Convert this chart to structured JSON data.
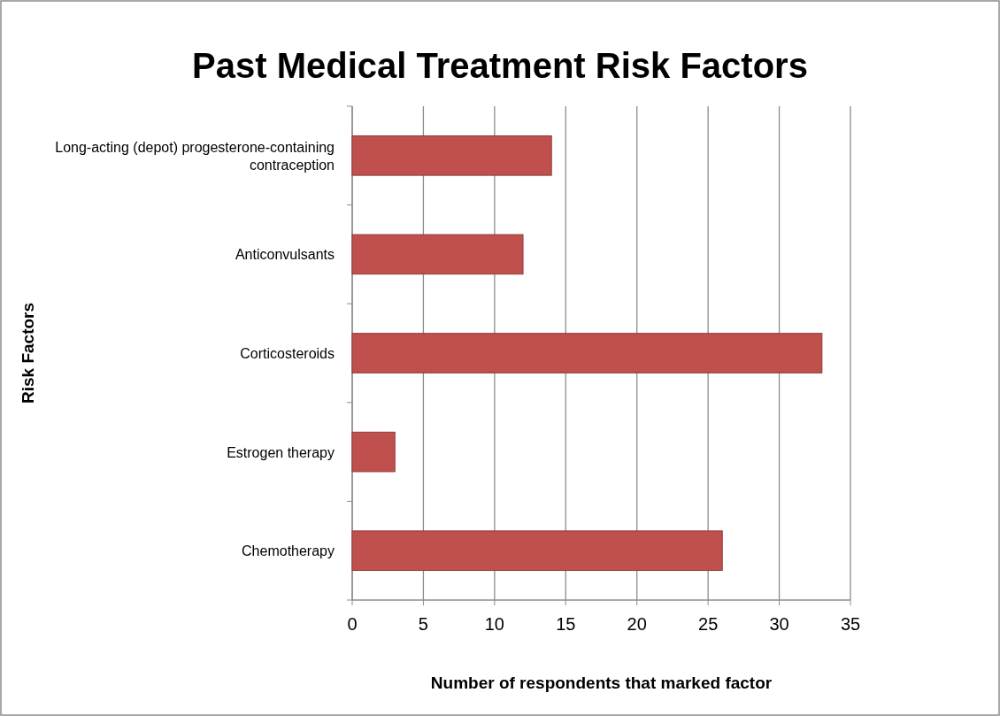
{
  "chart_data": {
    "type": "bar",
    "orientation": "horizontal",
    "title": "Past Medical Treatment Risk Factors",
    "xlabel": "Number of respondents that marked factor",
    "ylabel": "Risk Factors",
    "categories": [
      "Long-acting (depot) progesterone-containing contraception",
      "Anticonvulsants",
      "Corticosteroids",
      "Estrogen therapy",
      "Chemotherapy"
    ],
    "values": [
      14,
      12,
      33,
      3,
      26
    ],
    "color": "#c0504d",
    "xlim": [
      0,
      35
    ],
    "xticks": [
      0,
      5,
      10,
      15,
      20,
      25,
      30,
      35
    ],
    "grid": "x"
  }
}
